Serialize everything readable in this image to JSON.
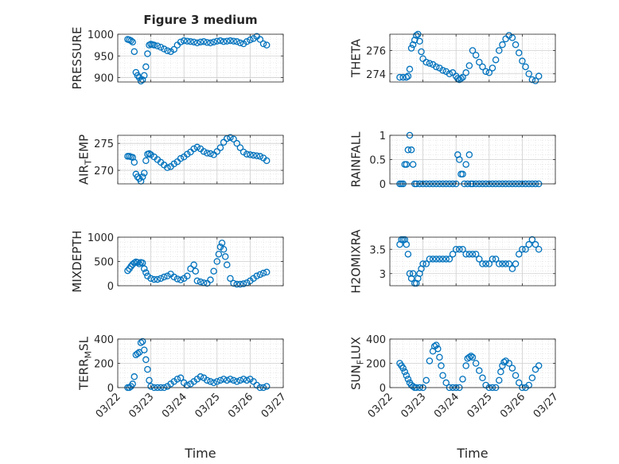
{
  "figure": {
    "title": "Figure 3 medium",
    "xlabel": "Time"
  },
  "chart_data": [
    {
      "type": "scatter",
      "ylabel": "PRESSURE",
      "ylabel_sub": "",
      "title": "Figure 3 medium",
      "xlim": [
        0,
        5
      ],
      "ylim": [
        890,
        1000
      ],
      "xticks": [
        0,
        1,
        2,
        3,
        4,
        5
      ],
      "yticks": [
        900,
        950,
        1000
      ],
      "ytick_labels": [
        "900",
        "950",
        "1000"
      ],
      "grid": "on",
      "x": [
        0.3,
        0.35,
        0.4,
        0.45,
        0.5,
        0.55,
        0.6,
        0.65,
        0.7,
        0.75,
        0.8,
        0.85,
        0.9,
        0.95,
        1.0,
        1.05,
        1.1,
        1.2,
        1.3,
        1.4,
        1.5,
        1.6,
        1.7,
        1.8,
        1.9,
        2.0,
        2.1,
        2.2,
        2.3,
        2.4,
        2.5,
        2.6,
        2.7,
        2.8,
        2.9,
        3.0,
        3.1,
        3.2,
        3.3,
        3.4,
        3.5,
        3.6,
        3.7,
        3.8,
        3.9,
        4.0,
        4.1,
        4.2,
        4.3,
        4.4,
        4.5
      ],
      "y": [
        988,
        987,
        985,
        982,
        960,
        912,
        905,
        900,
        892,
        895,
        905,
        925,
        955,
        975,
        977,
        976,
        975,
        973,
        970,
        966,
        962,
        960,
        965,
        975,
        982,
        985,
        984,
        983,
        982,
        980,
        982,
        983,
        981,
        980,
        982,
        984,
        985,
        983,
        984,
        985,
        984,
        983,
        980,
        978,
        983,
        987,
        990,
        995,
        988,
        978,
        975
      ]
    },
    {
      "type": "scatter",
      "ylabel": "THETA",
      "ylabel_sub": "",
      "xlim": [
        0,
        5
      ],
      "ylim": [
        273.3,
        277.4
      ],
      "xticks": [
        0,
        1,
        2,
        3,
        4,
        5
      ],
      "yticks": [
        274,
        276
      ],
      "ytick_labels": [
        "274",
        "276"
      ],
      "grid": "on",
      "x": [
        0.3,
        0.4,
        0.5,
        0.55,
        0.6,
        0.65,
        0.7,
        0.75,
        0.8,
        0.85,
        0.9,
        0.95,
        1.0,
        1.1,
        1.2,
        1.3,
        1.4,
        1.5,
        1.6,
        1.7,
        1.8,
        1.9,
        2.0,
        2.05,
        2.1,
        2.15,
        2.2,
        2.3,
        2.4,
        2.5,
        2.6,
        2.7,
        2.8,
        2.9,
        3.0,
        3.1,
        3.2,
        3.3,
        3.4,
        3.5,
        3.6,
        3.7,
        3.8,
        3.9,
        4.0,
        4.1,
        4.2,
        4.3,
        4.4,
        4.5
      ],
      "y": [
        273.7,
        273.7,
        273.7,
        273.8,
        274.4,
        276.2,
        276.5,
        276.9,
        277.3,
        277.4,
        276.8,
        275.9,
        275.3,
        275.0,
        274.9,
        274.8,
        274.6,
        274.5,
        274.3,
        274.2,
        274.0,
        274.1,
        273.8,
        273.6,
        273.5,
        273.6,
        273.7,
        274.1,
        274.7,
        276.0,
        275.6,
        275.0,
        274.6,
        274.2,
        274.1,
        274.5,
        275.2,
        276.0,
        276.5,
        277.0,
        277.3,
        277.1,
        276.5,
        275.8,
        275.1,
        274.6,
        274.0,
        273.5,
        273.4,
        273.8
      ]
    },
    {
      "type": "scatter",
      "ylabel": "AIR",
      "ylabel_sub": "T",
      "ylabel_tail": "EMP",
      "xlim": [
        0,
        5
      ],
      "ylim": [
        267.5,
        276.5
      ],
      "xticks": [
        0,
        1,
        2,
        3,
        4,
        5
      ],
      "yticks": [
        270,
        275
      ],
      "ytick_labels": [
        "270",
        "275"
      ],
      "grid": "on",
      "x": [
        0.3,
        0.35,
        0.4,
        0.45,
        0.5,
        0.55,
        0.6,
        0.65,
        0.7,
        0.75,
        0.8,
        0.85,
        0.9,
        0.95,
        1.0,
        1.1,
        1.2,
        1.3,
        1.4,
        1.5,
        1.6,
        1.7,
        1.8,
        1.9,
        2.0,
        2.1,
        2.2,
        2.3,
        2.4,
        2.5,
        2.6,
        2.7,
        2.8,
        2.9,
        3.0,
        3.1,
        3.2,
        3.3,
        3.4,
        3.5,
        3.6,
        3.7,
        3.8,
        3.9,
        4.0,
        4.1,
        4.2,
        4.3,
        4.4,
        4.5
      ],
      "y": [
        272.6,
        272.6,
        272.5,
        272.4,
        271.5,
        269.3,
        268.8,
        268.5,
        268.0,
        268.8,
        269.5,
        271.8,
        273.0,
        273.1,
        272.9,
        272.5,
        272.0,
        271.5,
        271.0,
        270.5,
        270.7,
        271.2,
        271.6,
        272.2,
        272.5,
        273.0,
        273.4,
        274.0,
        274.3,
        274.0,
        273.5,
        273.2,
        273.1,
        272.9,
        273.5,
        274.2,
        275.2,
        275.9,
        276.1,
        275.8,
        275.0,
        274.2,
        273.4,
        273.0,
        272.9,
        272.8,
        272.7,
        272.6,
        272.3,
        271.8
      ]
    },
    {
      "type": "scatter",
      "ylabel": "RAINFALL",
      "ylabel_sub": "",
      "xlim": [
        0,
        5
      ],
      "ylim": [
        0,
        1
      ],
      "xticks": [
        0,
        1,
        2,
        3,
        4,
        5
      ],
      "yticks": [
        0,
        0.5,
        1
      ],
      "ytick_labels": [
        "0",
        "0.5",
        "1"
      ],
      "grid": "on",
      "x": [
        0.3,
        0.35,
        0.4,
        0.45,
        0.5,
        0.55,
        0.6,
        0.65,
        0.7,
        0.75,
        0.8,
        0.9,
        1.0,
        1.1,
        1.2,
        1.3,
        1.4,
        1.5,
        1.6,
        1.7,
        1.8,
        1.9,
        2.0,
        2.05,
        2.1,
        2.15,
        2.2,
        2.25,
        2.3,
        2.35,
        2.4,
        2.45,
        2.5,
        2.6,
        2.7,
        2.8,
        2.9,
        3.0,
        3.1,
        3.2,
        3.3,
        3.4,
        3.5,
        3.6,
        3.7,
        3.8,
        3.9,
        4.0,
        4.1,
        4.2,
        4.3,
        4.4,
        4.5
      ],
      "y": [
        0,
        0,
        0,
        0.4,
        0.4,
        0.7,
        1.0,
        0.7,
        0.4,
        0,
        0,
        0,
        0,
        0,
        0,
        0,
        0,
        0,
        0,
        0,
        0,
        0,
        0,
        0.6,
        0.5,
        0.2,
        0.2,
        0,
        0.4,
        0,
        0.6,
        0,
        0,
        0,
        0,
        0,
        0,
        0,
        0,
        0,
        0,
        0,
        0,
        0,
        0,
        0,
        0,
        0,
        0,
        0,
        0,
        0,
        0
      ]
    },
    {
      "type": "scatter",
      "ylabel": "MIXDEPTH",
      "ylabel_sub": "",
      "xlim": [
        0,
        5
      ],
      "ylim": [
        0,
        1000
      ],
      "xticks": [
        0,
        1,
        2,
        3,
        4,
        5
      ],
      "yticks": [
        0,
        500,
        1000
      ],
      "ytick_labels": [
        "0",
        "500",
        "1000"
      ],
      "grid": "on",
      "x": [
        0.3,
        0.35,
        0.4,
        0.45,
        0.5,
        0.55,
        0.6,
        0.65,
        0.7,
        0.75,
        0.8,
        0.85,
        0.9,
        1.0,
        1.1,
        1.2,
        1.3,
        1.4,
        1.5,
        1.6,
        1.7,
        1.8,
        1.9,
        2.0,
        2.1,
        2.2,
        2.3,
        2.35,
        2.4,
        2.5,
        2.6,
        2.7,
        2.8,
        2.9,
        3.0,
        3.05,
        3.1,
        3.15,
        3.2,
        3.25,
        3.3,
        3.4,
        3.5,
        3.6,
        3.7,
        3.8,
        3.9,
        4.0,
        4.1,
        4.2,
        4.3,
        4.4,
        4.5
      ],
      "y": [
        310,
        350,
        400,
        440,
        470,
        490,
        480,
        450,
        480,
        470,
        350,
        270,
        200,
        150,
        130,
        130,
        150,
        180,
        200,
        240,
        180,
        140,
        120,
        150,
        200,
        350,
        430,
        300,
        100,
        80,
        60,
        50,
        120,
        300,
        500,
        650,
        800,
        880,
        750,
        600,
        430,
        150,
        50,
        30,
        30,
        40,
        60,
        100,
        150,
        200,
        230,
        260,
        280
      ]
    },
    {
      "type": "scatter",
      "ylabel": "H2OMIXRA",
      "ylabel_sub": "",
      "xlim": [
        0,
        5
      ],
      "ylim": [
        2.75,
        3.75
      ],
      "xticks": [
        0,
        1,
        2,
        3,
        4,
        5
      ],
      "yticks": [
        3,
        3.5
      ],
      "ytick_labels": [
        "3",
        "3.5"
      ],
      "grid": "on",
      "x": [
        0.3,
        0.35,
        0.4,
        0.45,
        0.5,
        0.55,
        0.6,
        0.65,
        0.7,
        0.75,
        0.8,
        0.85,
        0.9,
        0.95,
        1.0,
        1.1,
        1.2,
        1.3,
        1.4,
        1.5,
        1.6,
        1.7,
        1.8,
        1.9,
        2.0,
        2.1,
        2.2,
        2.3,
        2.4,
        2.5,
        2.6,
        2.7,
        2.8,
        2.9,
        3.0,
        3.1,
        3.2,
        3.3,
        3.4,
        3.5,
        3.6,
        3.7,
        3.8,
        3.9,
        4.0,
        4.1,
        4.2,
        4.3,
        4.4,
        4.5
      ],
      "y": [
        3.6,
        3.7,
        3.7,
        3.7,
        3.6,
        3.4,
        3.0,
        2.9,
        3.0,
        2.8,
        2.8,
        2.9,
        3.0,
        3.1,
        3.2,
        3.2,
        3.3,
        3.3,
        3.3,
        3.3,
        3.3,
        3.3,
        3.3,
        3.4,
        3.5,
        3.5,
        3.5,
        3.4,
        3.4,
        3.4,
        3.4,
        3.3,
        3.2,
        3.2,
        3.2,
        3.3,
        3.3,
        3.2,
        3.2,
        3.2,
        3.2,
        3.1,
        3.2,
        3.4,
        3.5,
        3.5,
        3.6,
        3.7,
        3.6,
        3.5
      ]
    },
    {
      "type": "scatter",
      "ylabel": "TERR",
      "ylabel_sub": "M",
      "ylabel_tail": "SL",
      "xlim": [
        0,
        5
      ],
      "ylim": [
        0,
        400
      ],
      "xticks": [
        0,
        1,
        2,
        3,
        4,
        5
      ],
      "yticks": [
        0,
        200,
        400
      ],
      "ytick_labels": [
        "0",
        "200",
        "400"
      ],
      "grid": "on",
      "x": [
        0.3,
        0.35,
        0.4,
        0.45,
        0.5,
        0.55,
        0.6,
        0.65,
        0.7,
        0.75,
        0.8,
        0.85,
        0.9,
        0.95,
        1.0,
        1.1,
        1.2,
        1.3,
        1.4,
        1.5,
        1.6,
        1.7,
        1.8,
        1.9,
        2.0,
        2.1,
        2.2,
        2.3,
        2.4,
        2.5,
        2.6,
        2.7,
        2.8,
        2.9,
        3.0,
        3.1,
        3.2,
        3.3,
        3.4,
        3.5,
        3.6,
        3.7,
        3.8,
        3.9,
        4.0,
        4.1,
        4.2,
        4.3,
        4.4,
        4.5
      ],
      "y": [
        0,
        0,
        10,
        30,
        90,
        270,
        280,
        290,
        370,
        380,
        310,
        230,
        150,
        60,
        10,
        0,
        0,
        0,
        0,
        10,
        30,
        50,
        70,
        80,
        40,
        20,
        30,
        50,
        70,
        90,
        80,
        60,
        50,
        40,
        50,
        60,
        70,
        60,
        70,
        60,
        50,
        60,
        70,
        60,
        70,
        50,
        20,
        0,
        0,
        10
      ]
    },
    {
      "type": "scatter",
      "ylabel": "SUN",
      "ylabel_sub": "F",
      "ylabel_tail": "LUX",
      "xlim": [
        0,
        5
      ],
      "ylim": [
        0,
        400
      ],
      "xticks": [
        0,
        1,
        2,
        3,
        4,
        5
      ],
      "yticks": [
        0,
        200,
        400
      ],
      "ytick_labels": [
        "0",
        "200",
        "400"
      ],
      "grid": "on",
      "x": [
        0.3,
        0.35,
        0.4,
        0.45,
        0.5,
        0.55,
        0.6,
        0.65,
        0.7,
        0.75,
        0.8,
        0.9,
        1.0,
        1.1,
        1.2,
        1.3,
        1.35,
        1.4,
        1.45,
        1.5,
        1.55,
        1.6,
        1.7,
        1.8,
        1.9,
        2.0,
        2.1,
        2.2,
        2.3,
        2.35,
        2.4,
        2.45,
        2.5,
        2.6,
        2.7,
        2.8,
        2.9,
        3.0,
        3.1,
        3.2,
        3.3,
        3.35,
        3.4,
        3.45,
        3.5,
        3.6,
        3.7,
        3.8,
        3.9,
        4.0,
        4.1,
        4.2,
        4.3,
        4.4,
        4.5
      ],
      "y": [
        200,
        180,
        160,
        130,
        100,
        70,
        40,
        20,
        10,
        0,
        0,
        0,
        0,
        60,
        220,
        300,
        340,
        350,
        320,
        250,
        180,
        100,
        40,
        0,
        0,
        0,
        0,
        70,
        180,
        240,
        250,
        260,
        250,
        200,
        140,
        80,
        20,
        0,
        0,
        0,
        60,
        130,
        180,
        210,
        220,
        200,
        160,
        100,
        40,
        0,
        0,
        20,
        80,
        150,
        180
      ]
    }
  ]
}
